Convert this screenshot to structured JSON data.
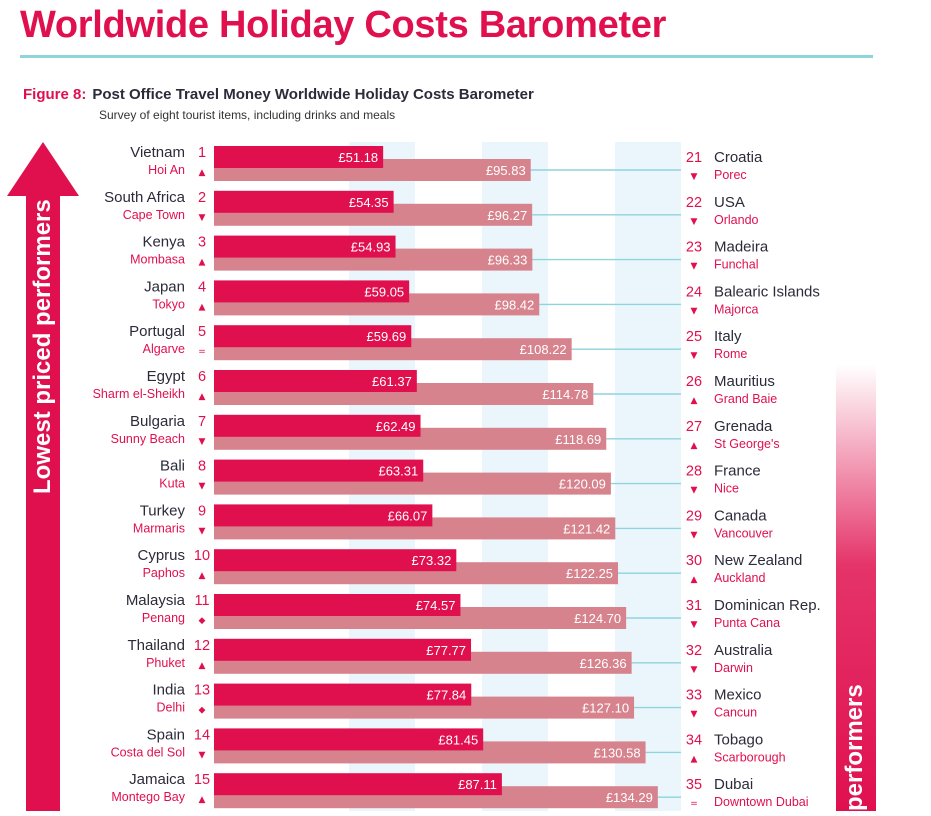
{
  "header": {
    "title": "Worldwide Holiday Costs Barometer",
    "figure_number": "Figure 8:",
    "figure_title": "Post Office Travel Money Worldwide Holiday Costs Barometer",
    "figure_subtitle": "Survey of eight tourist items, including drinks and meals"
  },
  "side_labels": {
    "left": "Lowest priced performers",
    "right": "performers"
  },
  "colors": {
    "brand": "#e0104f",
    "bar_left": "#e0104f",
    "bar_right": "#d7838d",
    "connector": "#8fd3dc",
    "band": "#eaf6fb"
  },
  "trend_symbols": {
    "up": "▲",
    "down": "▼",
    "same": "=",
    "new": "◆"
  },
  "chart_data": {
    "type": "bar",
    "title": "Post Office Travel Money Worldwide Holiday Costs Barometer",
    "subtitle": "Survey of eight tourist items, including drinks and meals",
    "currency": "£",
    "value_range": [
      0,
      140
    ],
    "grid": false,
    "left_series": [
      {
        "rank": "1",
        "country": "Vietnam",
        "city": "Hoi An",
        "value": 51.18,
        "label": "£51.18",
        "trend": "up"
      },
      {
        "rank": "2",
        "country": "South Africa",
        "city": "Cape Town",
        "value": 54.35,
        "label": "£54.35",
        "trend": "down"
      },
      {
        "rank": "3",
        "country": "Kenya",
        "city": "Mombasa",
        "value": 54.93,
        "label": "£54.93",
        "trend": "up"
      },
      {
        "rank": "4",
        "country": "Japan",
        "city": "Tokyo",
        "value": 59.05,
        "label": "£59.05",
        "trend": "up"
      },
      {
        "rank": "5",
        "country": "Portugal",
        "city": "Algarve",
        "value": 59.69,
        "label": "£59.69",
        "trend": "same"
      },
      {
        "rank": "6",
        "country": "Egypt",
        "city": "Sharm el-Sheikh",
        "value": 61.37,
        "label": "£61.37",
        "trend": "up"
      },
      {
        "rank": "7",
        "country": "Bulgaria",
        "city": "Sunny Beach",
        "value": 62.49,
        "label": "£62.49",
        "trend": "down"
      },
      {
        "rank": "8",
        "country": "Bali",
        "city": "Kuta",
        "value": 63.31,
        "label": "£63.31",
        "trend": "down"
      },
      {
        "rank": "9",
        "country": "Turkey",
        "city": "Marmaris",
        "value": 66.07,
        "label": "£66.07",
        "trend": "down"
      },
      {
        "rank": "10",
        "country": "Cyprus",
        "city": "Paphos",
        "value": 73.32,
        "label": "£73.32",
        "trend": "up"
      },
      {
        "rank": "11",
        "country": "Malaysia",
        "city": "Penang",
        "value": 74.57,
        "label": "£74.57",
        "trend": "new"
      },
      {
        "rank": "12",
        "country": "Thailand",
        "city": "Phuket",
        "value": 77.77,
        "label": "£77.77",
        "trend": "up"
      },
      {
        "rank": "13",
        "country": "India",
        "city": "Delhi",
        "value": 77.84,
        "label": "£77.84",
        "trend": "new"
      },
      {
        "rank": "14",
        "country": "Spain",
        "city": "Costa del Sol",
        "value": 81.45,
        "label": "£81.45",
        "trend": "down"
      },
      {
        "rank": "15",
        "country": "Jamaica",
        "city": "Montego Bay",
        "value": 87.11,
        "label": "£87.11",
        "trend": "up"
      }
    ],
    "right_series": [
      {
        "rank": "21",
        "country": "Croatia",
        "city": "Porec",
        "value": 95.83,
        "label": "£95.83",
        "trend": "down"
      },
      {
        "rank": "22",
        "country": "USA",
        "city": "Orlando",
        "value": 96.27,
        "label": "£96.27",
        "trend": "down"
      },
      {
        "rank": "23",
        "country": "Madeira",
        "city": "Funchal",
        "value": 96.33,
        "label": "£96.33",
        "trend": "down"
      },
      {
        "rank": "24",
        "country": "Balearic Islands",
        "city": "Majorca",
        "value": 98.42,
        "label": "£98.42",
        "trend": "down"
      },
      {
        "rank": "25",
        "country": "Italy",
        "city": "Rome",
        "value": 108.22,
        "label": "£108.22",
        "trend": "down"
      },
      {
        "rank": "26",
        "country": "Mauritius",
        "city": "Grand Baie",
        "value": 114.78,
        "label": "£114.78",
        "trend": "up"
      },
      {
        "rank": "27",
        "country": "Grenada",
        "city": "St George's",
        "value": 118.69,
        "label": "£118.69",
        "trend": "up"
      },
      {
        "rank": "28",
        "country": "France",
        "city": "Nice",
        "value": 120.09,
        "label": "£120.09",
        "trend": "down"
      },
      {
        "rank": "29",
        "country": "Canada",
        "city": "Vancouver",
        "value": 121.42,
        "label": "£121.42",
        "trend": "down"
      },
      {
        "rank": "30",
        "country": "New Zealand",
        "city": "Auckland",
        "value": 122.25,
        "label": "£122.25",
        "trend": "up"
      },
      {
        "rank": "31",
        "country": "Dominican Rep.",
        "city": "Punta Cana",
        "value": 124.7,
        "label": "£124.70",
        "trend": "down"
      },
      {
        "rank": "32",
        "country": "Australia",
        "city": "Darwin",
        "value": 126.36,
        "label": "£126.36",
        "trend": "down"
      },
      {
        "rank": "33",
        "country": "Mexico",
        "city": "Cancun",
        "value": 127.1,
        "label": "£127.10",
        "trend": "down"
      },
      {
        "rank": "34",
        "country": "Tobago",
        "city": "Scarborough",
        "value": 130.58,
        "label": "£130.58",
        "trend": "up"
      },
      {
        "rank": "35",
        "country": "Dubai",
        "city": "Downtown Dubai",
        "value": 134.29,
        "label": "£134.29",
        "trend": "same"
      }
    ]
  }
}
